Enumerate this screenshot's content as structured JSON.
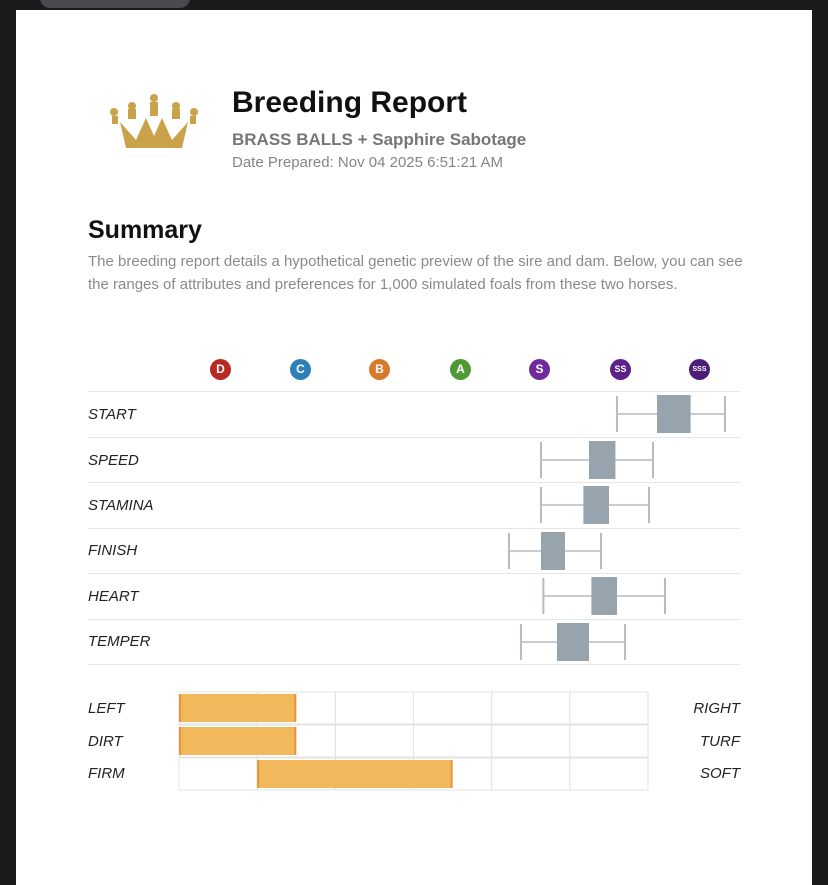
{
  "report": {
    "title": "Breeding Report",
    "subtitle": "BRASS BALLS + Sapphire Sabotage",
    "date_label": "Date Prepared:",
    "date_value": "Nov 04 2025 6:51:21 AM",
    "logo_icon": "crown-icon"
  },
  "summary": {
    "heading": "Summary",
    "text": "The breeding report details a hypothetical genetic preview of the sire and dam. Below, you can see the ranges of attributes and preferences for 1,000 simulated foals from these two horses."
  },
  "grades": [
    {
      "label": "D",
      "color": "#b52a23"
    },
    {
      "label": "C",
      "color": "#2e7fb8"
    },
    {
      "label": "B",
      "color": "#d9792a"
    },
    {
      "label": "A",
      "color": "#4f9a36"
    },
    {
      "label": "S",
      "color": "#6f2a9e"
    },
    {
      "label": "SS",
      "color": "#5b2188"
    },
    {
      "label": "SSS",
      "color": "#4b1c78"
    }
  ],
  "chart_data": {
    "type": "boxplot",
    "scale": "grade",
    "scale_ticks": [
      "D",
      "C",
      "B",
      "A",
      "S",
      "SS",
      "SSS"
    ],
    "xlim": [
      0,
      6
    ],
    "note": "values in grade units: D=0, C=1, B=2, A=3, S=4, SS=5, SSS=6",
    "series": [
      {
        "name": "START",
        "min": 4.95,
        "q1": 5.45,
        "q3": 5.87,
        "max": 6.3
      },
      {
        "name": "SPEED",
        "min": 4.0,
        "q1": 4.6,
        "q3": 4.93,
        "max": 5.4
      },
      {
        "name": "STAMINA",
        "min": 4.0,
        "q1": 4.53,
        "q3": 4.85,
        "max": 5.35
      },
      {
        "name": "FINISH",
        "min": 3.6,
        "q1": 4.0,
        "q3": 4.3,
        "max": 4.75
      },
      {
        "name": "HEART",
        "min": 4.03,
        "q1": 4.63,
        "q3": 4.95,
        "max": 5.55
      },
      {
        "name": "TEMPER",
        "min": 3.75,
        "q1": 4.2,
        "q3": 4.6,
        "max": 5.05
      }
    ]
  },
  "preferences": {
    "scale_steps": 6,
    "rows": [
      {
        "left": "LEFT",
        "right": "RIGHT",
        "start": 0,
        "end": 1.5
      },
      {
        "left": "DIRT",
        "right": "TURF",
        "start": 0,
        "end": 1.5
      },
      {
        "left": "FIRM",
        "right": "SOFT",
        "start": 1,
        "end": 3.5
      }
    ],
    "bar_color": "#f2b95c",
    "bar_edge_color": "#e5963a"
  }
}
